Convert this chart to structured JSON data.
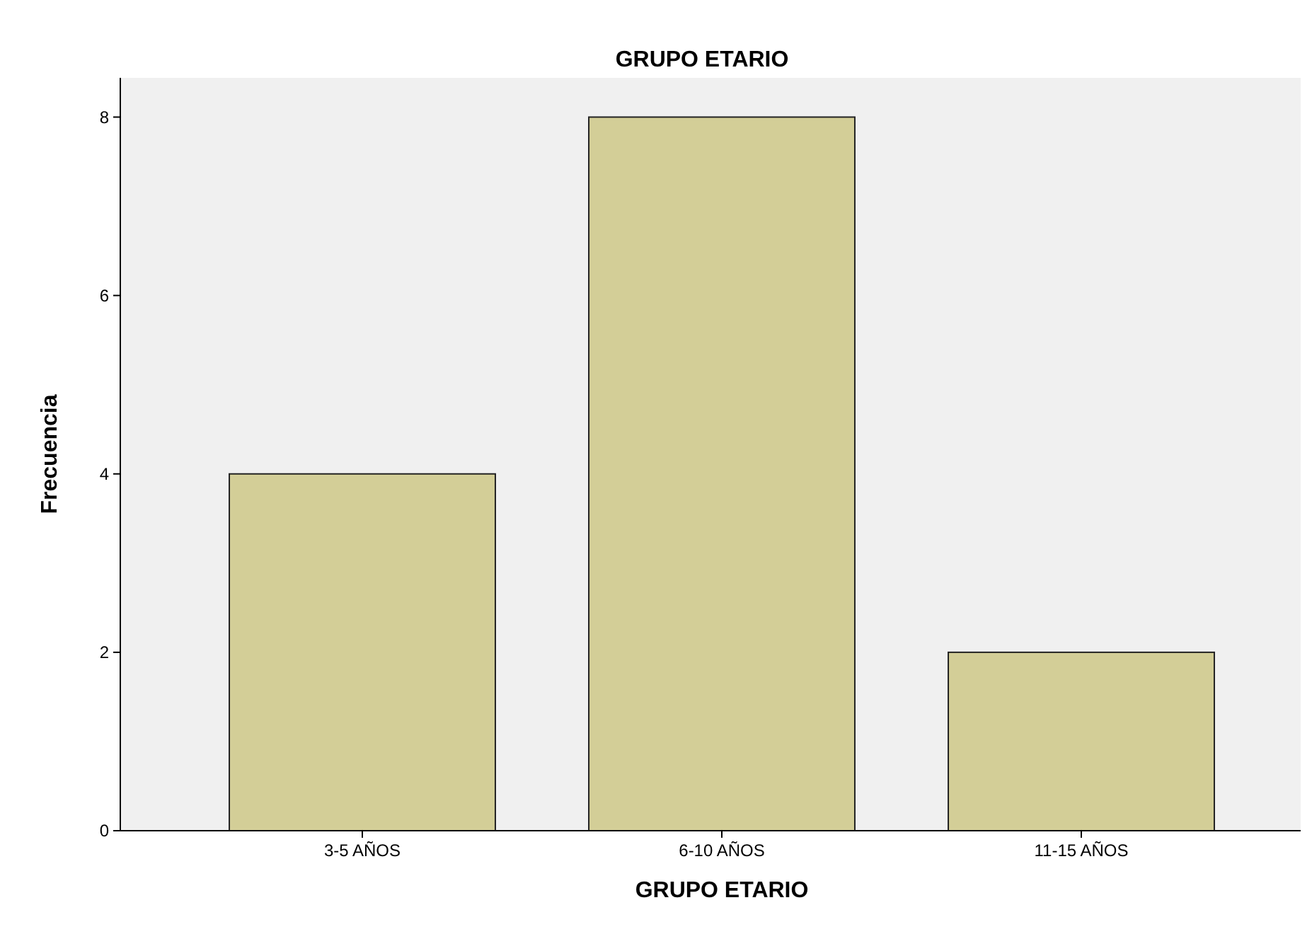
{
  "chart_data": {
    "type": "bar",
    "title": "GRUPO ETARIO",
    "xlabel": "GRUPO ETARIO",
    "ylabel": "Frecuencia",
    "categories": [
      "3-5 AÑOS",
      "6-10 AÑOS",
      "11-15 AÑOS"
    ],
    "values": [
      4,
      8,
      2
    ],
    "color": "#d3ce97",
    "ylim": [
      0,
      8.44
    ],
    "yticks": [
      0,
      2,
      4,
      6,
      8
    ],
    "grid": false
  }
}
